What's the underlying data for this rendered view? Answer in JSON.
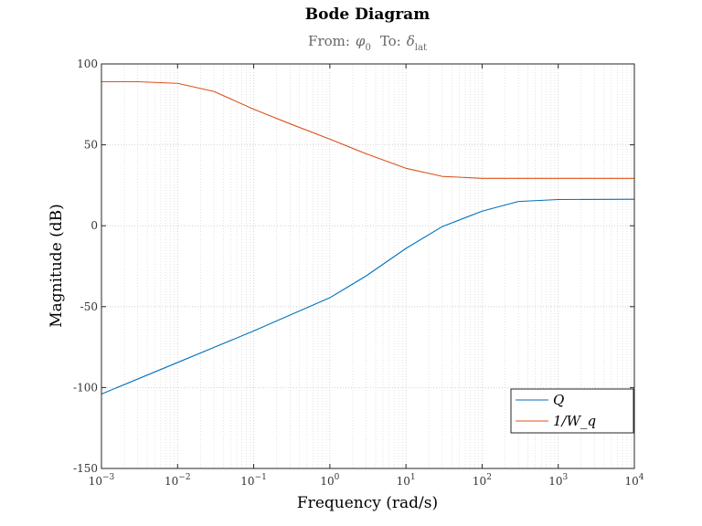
{
  "chart_data": {
    "type": "line",
    "title": "Bode Diagram",
    "subtitle": {
      "from_label": "From:",
      "from_symbol": "φ",
      "from_sub": "0",
      "to_label": "To:",
      "to_symbol": "δ",
      "to_sub": "lat"
    },
    "xlabel": "Frequency  (rad/s)",
    "ylabel": "Magnitude (dB)",
    "xscale": "log",
    "xlim": [
      0.001,
      10000
    ],
    "ylim": [
      -150,
      100
    ],
    "grid": "on",
    "legend_position": "lower-right",
    "x_ticks": [
      {
        "base": "10",
        "exp": "−3"
      },
      {
        "base": "10",
        "exp": "−2"
      },
      {
        "base": "10",
        "exp": "−1"
      },
      {
        "base": "10",
        "exp": "0"
      },
      {
        "base": "10",
        "exp": "1"
      },
      {
        "base": "10",
        "exp": "2"
      },
      {
        "base": "10",
        "exp": "3"
      },
      {
        "base": "10",
        "exp": "4"
      }
    ],
    "x_tick_values": [
      0.001,
      0.01,
      0.1,
      1,
      10,
      100,
      1000,
      10000
    ],
    "y_ticks": [
      "100",
      "50",
      "0",
      "-50",
      "-100",
      "-150"
    ],
    "y_tick_values": [
      100,
      50,
      0,
      -50,
      -100,
      -150
    ],
    "series": [
      {
        "name": "Q",
        "color": "#0072BD",
        "x": [
          0.001,
          0.01,
          0.1,
          1,
          3,
          10,
          30,
          100,
          300,
          1000,
          10000
        ],
        "y": [
          -104,
          -84.5,
          -65,
          -44.5,
          -31,
          -14,
          -0.5,
          9,
          15,
          16.2,
          16.4
        ]
      },
      {
        "name": "1/W_q",
        "color": "#D95319",
        "x": [
          0.001,
          0.003,
          0.01,
          0.03,
          0.1,
          0.3,
          1,
          3,
          10,
          30,
          100,
          1000,
          10000
        ],
        "y": [
          89,
          89,
          88,
          83,
          72,
          63,
          53.5,
          44.5,
          35.5,
          30.5,
          29.3,
          29.3,
          29.3
        ]
      }
    ]
  }
}
